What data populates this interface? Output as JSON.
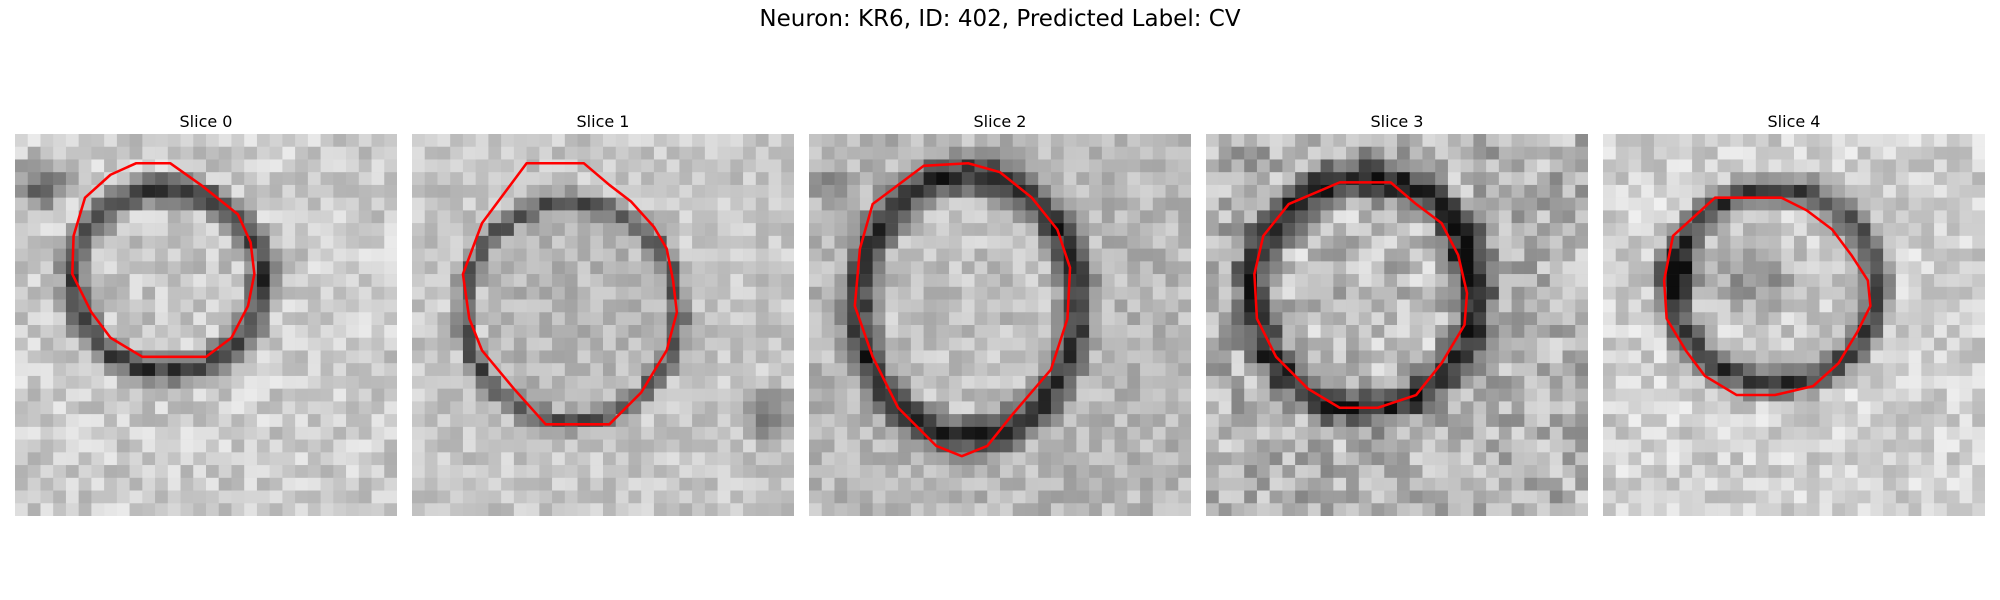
{
  "figure": {
    "title": "Neuron: KR6, ID: 402, Predicted Label: CV"
  },
  "panels": [
    {
      "title": "Slice 0"
    },
    {
      "title": "Slice 1"
    },
    {
      "title": "Slice 2"
    },
    {
      "title": "Slice 3"
    },
    {
      "title": "Slice 4"
    }
  ],
  "colors": {
    "contour": "#ff0000",
    "background": "#ffffff"
  }
}
